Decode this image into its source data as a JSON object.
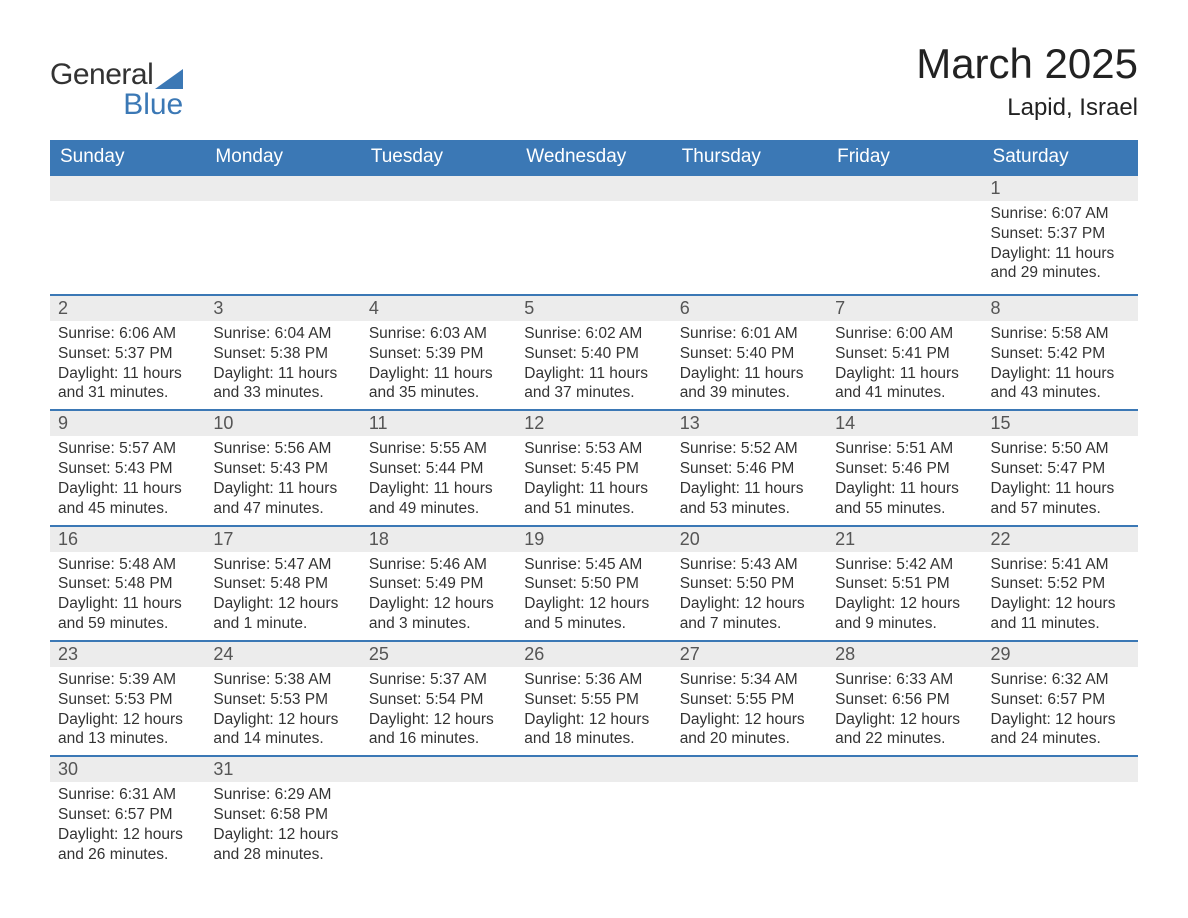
{
  "logo": {
    "general": "General",
    "blue": "Blue"
  },
  "header": {
    "month": "March 2025",
    "location": "Lapid, Israel"
  },
  "colors": {
    "header_bg": "#3b78b5",
    "header_text": "#ffffff",
    "daynum_bg": "#ececec",
    "border": "#3b78b5",
    "text": "#333333",
    "daynum_text": "#555555"
  },
  "typography": {
    "month_title_fontsize": 42,
    "location_fontsize": 24,
    "daynames_fontsize": 19,
    "daynum_fontsize": 18,
    "body_fontsize": 15.5
  },
  "dayNames": [
    "Sunday",
    "Monday",
    "Tuesday",
    "Wednesday",
    "Thursday",
    "Friday",
    "Saturday"
  ],
  "weeks": [
    [
      null,
      null,
      null,
      null,
      null,
      null,
      {
        "n": "1",
        "sr": "Sunrise: 6:07 AM",
        "ss": "Sunset: 5:37 PM",
        "d1": "Daylight: 11 hours",
        "d2": "and 29 minutes."
      }
    ],
    [
      {
        "n": "2",
        "sr": "Sunrise: 6:06 AM",
        "ss": "Sunset: 5:37 PM",
        "d1": "Daylight: 11 hours",
        "d2": "and 31 minutes."
      },
      {
        "n": "3",
        "sr": "Sunrise: 6:04 AM",
        "ss": "Sunset: 5:38 PM",
        "d1": "Daylight: 11 hours",
        "d2": "and 33 minutes."
      },
      {
        "n": "4",
        "sr": "Sunrise: 6:03 AM",
        "ss": "Sunset: 5:39 PM",
        "d1": "Daylight: 11 hours",
        "d2": "and 35 minutes."
      },
      {
        "n": "5",
        "sr": "Sunrise: 6:02 AM",
        "ss": "Sunset: 5:40 PM",
        "d1": "Daylight: 11 hours",
        "d2": "and 37 minutes."
      },
      {
        "n": "6",
        "sr": "Sunrise: 6:01 AM",
        "ss": "Sunset: 5:40 PM",
        "d1": "Daylight: 11 hours",
        "d2": "and 39 minutes."
      },
      {
        "n": "7",
        "sr": "Sunrise: 6:00 AM",
        "ss": "Sunset: 5:41 PM",
        "d1": "Daylight: 11 hours",
        "d2": "and 41 minutes."
      },
      {
        "n": "8",
        "sr": "Sunrise: 5:58 AM",
        "ss": "Sunset: 5:42 PM",
        "d1": "Daylight: 11 hours",
        "d2": "and 43 minutes."
      }
    ],
    [
      {
        "n": "9",
        "sr": "Sunrise: 5:57 AM",
        "ss": "Sunset: 5:43 PM",
        "d1": "Daylight: 11 hours",
        "d2": "and 45 minutes."
      },
      {
        "n": "10",
        "sr": "Sunrise: 5:56 AM",
        "ss": "Sunset: 5:43 PM",
        "d1": "Daylight: 11 hours",
        "d2": "and 47 minutes."
      },
      {
        "n": "11",
        "sr": "Sunrise: 5:55 AM",
        "ss": "Sunset: 5:44 PM",
        "d1": "Daylight: 11 hours",
        "d2": "and 49 minutes."
      },
      {
        "n": "12",
        "sr": "Sunrise: 5:53 AM",
        "ss": "Sunset: 5:45 PM",
        "d1": "Daylight: 11 hours",
        "d2": "and 51 minutes."
      },
      {
        "n": "13",
        "sr": "Sunrise: 5:52 AM",
        "ss": "Sunset: 5:46 PM",
        "d1": "Daylight: 11 hours",
        "d2": "and 53 minutes."
      },
      {
        "n": "14",
        "sr": "Sunrise: 5:51 AM",
        "ss": "Sunset: 5:46 PM",
        "d1": "Daylight: 11 hours",
        "d2": "and 55 minutes."
      },
      {
        "n": "15",
        "sr": "Sunrise: 5:50 AM",
        "ss": "Sunset: 5:47 PM",
        "d1": "Daylight: 11 hours",
        "d2": "and 57 minutes."
      }
    ],
    [
      {
        "n": "16",
        "sr": "Sunrise: 5:48 AM",
        "ss": "Sunset: 5:48 PM",
        "d1": "Daylight: 11 hours",
        "d2": "and 59 minutes."
      },
      {
        "n": "17",
        "sr": "Sunrise: 5:47 AM",
        "ss": "Sunset: 5:48 PM",
        "d1": "Daylight: 12 hours",
        "d2": "and 1 minute."
      },
      {
        "n": "18",
        "sr": "Sunrise: 5:46 AM",
        "ss": "Sunset: 5:49 PM",
        "d1": "Daylight: 12 hours",
        "d2": "and 3 minutes."
      },
      {
        "n": "19",
        "sr": "Sunrise: 5:45 AM",
        "ss": "Sunset: 5:50 PM",
        "d1": "Daylight: 12 hours",
        "d2": "and 5 minutes."
      },
      {
        "n": "20",
        "sr": "Sunrise: 5:43 AM",
        "ss": "Sunset: 5:50 PM",
        "d1": "Daylight: 12 hours",
        "d2": "and 7 minutes."
      },
      {
        "n": "21",
        "sr": "Sunrise: 5:42 AM",
        "ss": "Sunset: 5:51 PM",
        "d1": "Daylight: 12 hours",
        "d2": "and 9 minutes."
      },
      {
        "n": "22",
        "sr": "Sunrise: 5:41 AM",
        "ss": "Sunset: 5:52 PM",
        "d1": "Daylight: 12 hours",
        "d2": "and 11 minutes."
      }
    ],
    [
      {
        "n": "23",
        "sr": "Sunrise: 5:39 AM",
        "ss": "Sunset: 5:53 PM",
        "d1": "Daylight: 12 hours",
        "d2": "and 13 minutes."
      },
      {
        "n": "24",
        "sr": "Sunrise: 5:38 AM",
        "ss": "Sunset: 5:53 PM",
        "d1": "Daylight: 12 hours",
        "d2": "and 14 minutes."
      },
      {
        "n": "25",
        "sr": "Sunrise: 5:37 AM",
        "ss": "Sunset: 5:54 PM",
        "d1": "Daylight: 12 hours",
        "d2": "and 16 minutes."
      },
      {
        "n": "26",
        "sr": "Sunrise: 5:36 AM",
        "ss": "Sunset: 5:55 PM",
        "d1": "Daylight: 12 hours",
        "d2": "and 18 minutes."
      },
      {
        "n": "27",
        "sr": "Sunrise: 5:34 AM",
        "ss": "Sunset: 5:55 PM",
        "d1": "Daylight: 12 hours",
        "d2": "and 20 minutes."
      },
      {
        "n": "28",
        "sr": "Sunrise: 6:33 AM",
        "ss": "Sunset: 6:56 PM",
        "d1": "Daylight: 12 hours",
        "d2": "and 22 minutes."
      },
      {
        "n": "29",
        "sr": "Sunrise: 6:32 AM",
        "ss": "Sunset: 6:57 PM",
        "d1": "Daylight: 12 hours",
        "d2": "and 24 minutes."
      }
    ],
    [
      {
        "n": "30",
        "sr": "Sunrise: 6:31 AM",
        "ss": "Sunset: 6:57 PM",
        "d1": "Daylight: 12 hours",
        "d2": "and 26 minutes."
      },
      {
        "n": "31",
        "sr": "Sunrise: 6:29 AM",
        "ss": "Sunset: 6:58 PM",
        "d1": "Daylight: 12 hours",
        "d2": "and 28 minutes."
      },
      null,
      null,
      null,
      null,
      null
    ]
  ]
}
